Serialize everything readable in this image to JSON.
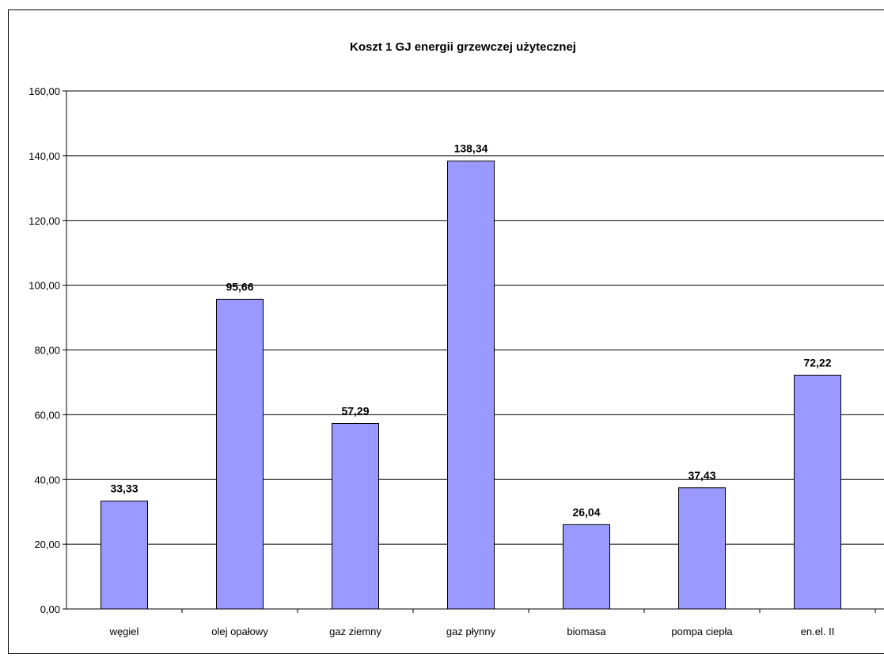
{
  "chart_data": {
    "type": "bar",
    "title": "Koszt 1 GJ energii grzewczej użytecznej",
    "categories": [
      "węgiel",
      "olej opałowy",
      "gaz ziemny",
      "gaz płynny",
      "biomasa",
      "pompa ciepła",
      "en.el. II"
    ],
    "values": [
      33.33,
      95.66,
      57.29,
      138.34,
      26.04,
      37.43,
      72.22
    ],
    "value_labels": [
      "33,33",
      "95,66",
      "57,29",
      "138,34",
      "26,04",
      "37,43",
      "72,22"
    ],
    "yticks": [
      "0,00",
      "20,00",
      "40,00",
      "60,00",
      "80,00",
      "100,00",
      "120,00",
      "140,00",
      "160,00"
    ],
    "ylim": [
      0,
      160
    ],
    "grid": true,
    "legend": "none",
    "bar_color": "#9999ff"
  }
}
